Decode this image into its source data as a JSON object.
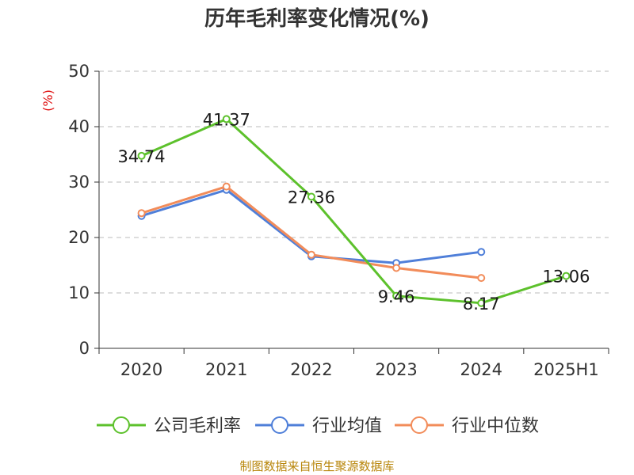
{
  "chart_data": {
    "type": "line",
    "title": "历年毛利率变化情况(%)",
    "ylabel": "(%)",
    "xlabel": "",
    "categories": [
      "2020",
      "2021",
      "2022",
      "2023",
      "2024",
      "2025H1"
    ],
    "ylim": [
      0,
      50
    ],
    "yticks": [
      0,
      10,
      20,
      30,
      40,
      50
    ],
    "grid": true,
    "legend_position": "bottom",
    "series": [
      {
        "name": "公司毛利率",
        "color": "#5dc12c",
        "values": [
          34.74,
          41.37,
          27.36,
          9.46,
          8.17,
          13.06
        ],
        "labels": [
          "34.74",
          "41.37",
          "27.36",
          "9.46",
          "8.17",
          "13.06"
        ]
      },
      {
        "name": "行业均值",
        "color": "#4f7fd9",
        "values": [
          23.9,
          28.6,
          16.6,
          15.4,
          17.4,
          null
        ]
      },
      {
        "name": "行业中位数",
        "color": "#f28c5a",
        "values": [
          24.4,
          29.2,
          16.9,
          14.5,
          12.7,
          null
        ]
      }
    ]
  },
  "source": "制图数据来自恒生聚源数据库"
}
